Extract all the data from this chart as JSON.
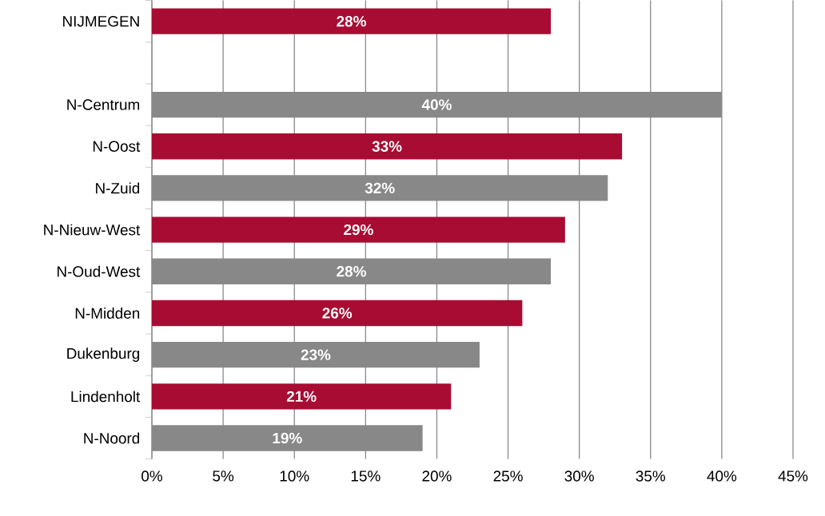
{
  "chart_data": {
    "type": "bar",
    "orientation": "horizontal",
    "categories": [
      "NIJMEGEN",
      null,
      "N-Centrum",
      "N-Oost",
      "N-Zuid",
      "N-Nieuw-West",
      "N-Oud-West",
      "N-Midden",
      "Dukenburg",
      "Lindenholt",
      "N-Noord"
    ],
    "values": [
      28,
      null,
      40,
      33,
      32,
      29,
      28,
      26,
      23,
      21,
      19
    ],
    "colors": [
      "#a80c32",
      null,
      "#888888",
      "#a80c32",
      "#888888",
      "#a80c32",
      "#888888",
      "#a80c32",
      "#888888",
      "#a80c32",
      "#888888"
    ],
    "value_labels": [
      "28%",
      null,
      "40%",
      "33%",
      "32%",
      "29%",
      "28%",
      "26%",
      "23%",
      "21%",
      "19%"
    ],
    "xlim": [
      0,
      45
    ],
    "xticks": [
      {
        "value": 0,
        "label": "0%"
      },
      {
        "value": 5,
        "label": "5%"
      },
      {
        "value": 10,
        "label": "10%"
      },
      {
        "value": 15,
        "label": "15%"
      },
      {
        "value": 20,
        "label": "20%"
      },
      {
        "value": 25,
        "label": "25%"
      },
      {
        "value": 30,
        "label": "30%"
      },
      {
        "value": 35,
        "label": "35%"
      },
      {
        "value": 40,
        "label": "40%"
      },
      {
        "value": 45,
        "label": "45%"
      }
    ],
    "grid": "x"
  }
}
